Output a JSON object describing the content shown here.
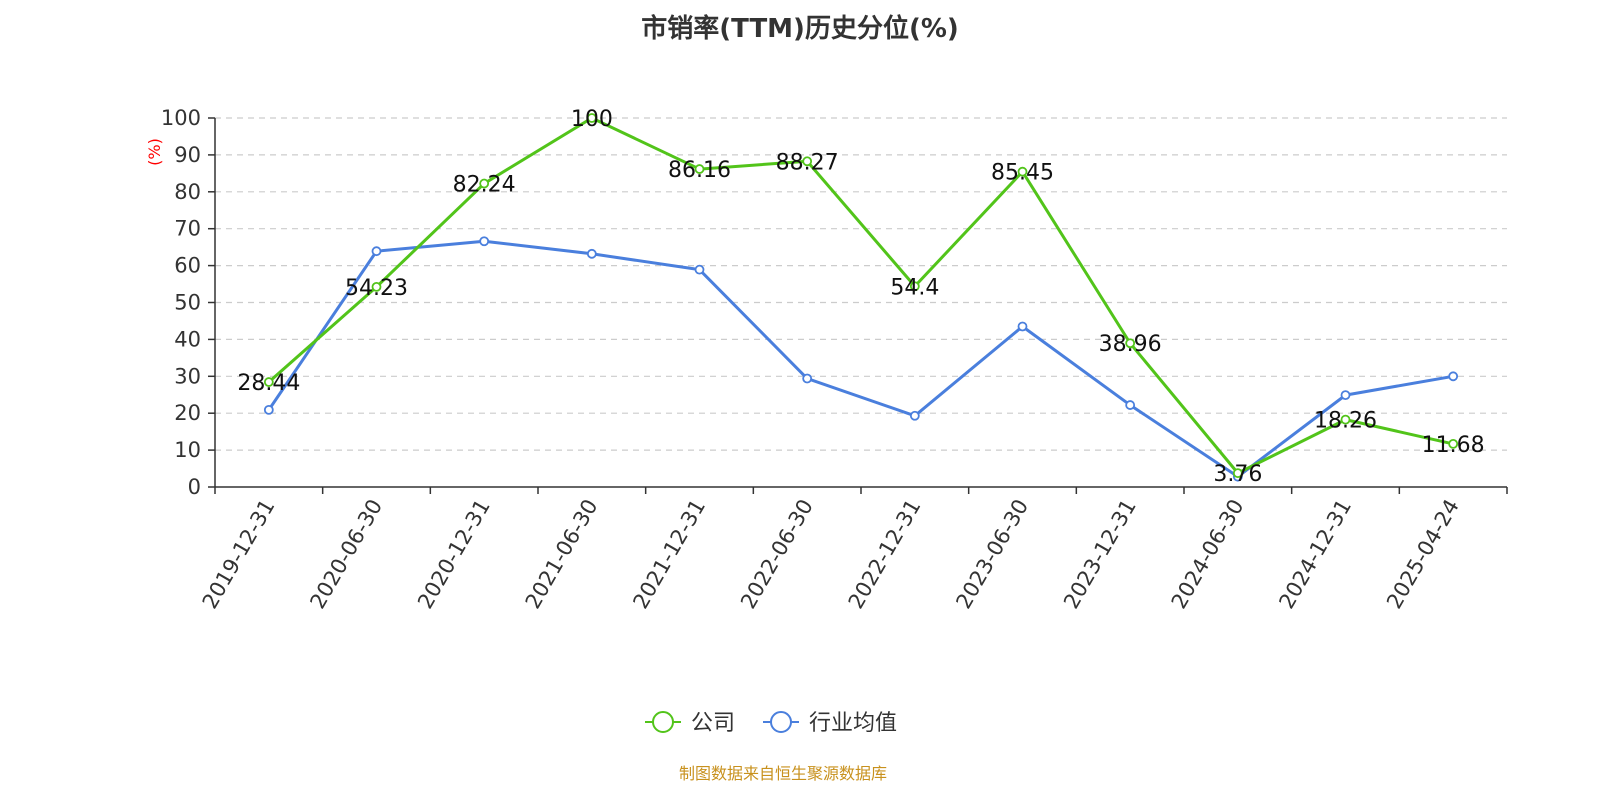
{
  "chart_data": {
    "type": "line",
    "title": "市销率(TTM)历史分位(%)",
    "ylabel": "(%)",
    "xlabel": "",
    "ylim": [
      0,
      100
    ],
    "yticks": [
      0,
      10,
      20,
      30,
      40,
      50,
      60,
      70,
      80,
      90,
      100
    ],
    "grid": "horizontal-dashed",
    "legend_position": "bottom-center",
    "categories": [
      "2019-12-31",
      "2020-06-30",
      "2020-12-31",
      "2021-06-30",
      "2021-12-31",
      "2022-06-30",
      "2022-12-31",
      "2023-06-30",
      "2023-12-31",
      "2024-06-30",
      "2024-12-31",
      "2025-04-24"
    ],
    "series": [
      {
        "name": "公司",
        "color": "#52c41a",
        "show_labels": true,
        "values": [
          28.44,
          54.23,
          82.24,
          100,
          86.16,
          88.27,
          54.4,
          85.45,
          38.96,
          3.76,
          18.26,
          11.68
        ]
      },
      {
        "name": "行业均值",
        "color": "#4a7fdd",
        "show_labels": false,
        "values": [
          20.9,
          63.9,
          66.6,
          63.2,
          58.9,
          29.4,
          19.3,
          43.5,
          22.2,
          2.8,
          24.9,
          30.0
        ]
      }
    ],
    "source": "制图数据来自恒生聚源数据库"
  }
}
